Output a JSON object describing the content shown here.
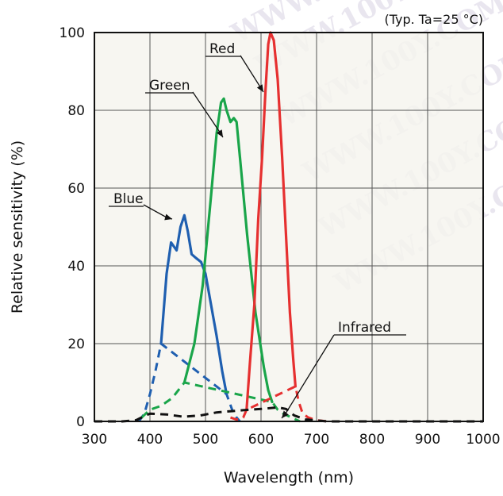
{
  "chart_data": {
    "type": "line",
    "note": "(Typ. Ta=25 °C)",
    "xlabel": "Wavelength (nm)",
    "ylabel": "Relative sensitivity (%)",
    "xlim": [
      300,
      1000
    ],
    "ylim": [
      0,
      100
    ],
    "xticks": [
      300,
      400,
      500,
      600,
      700,
      800,
      900,
      1000
    ],
    "yticks": [
      0,
      20,
      40,
      60,
      80,
      100
    ],
    "grid": true,
    "watermark": "WWW.100Y.COM.TW",
    "series": [
      {
        "name": "Blue",
        "color": "#1f5fb0",
        "solid": [
          [
            420,
            20
          ],
          [
            430,
            38
          ],
          [
            438,
            46
          ],
          [
            443,
            45
          ],
          [
            448,
            44
          ],
          [
            455,
            50
          ],
          [
            462,
            53
          ],
          [
            468,
            49
          ],
          [
            475,
            43
          ],
          [
            483,
            42
          ],
          [
            492,
            41
          ],
          [
            500,
            38
          ],
          [
            510,
            30
          ],
          [
            520,
            22
          ],
          [
            530,
            13
          ],
          [
            538,
            7
          ]
        ],
        "dashed": [
          [
            380,
            0
          ],
          [
            390,
            2
          ],
          [
            400,
            7
          ],
          [
            410,
            13
          ],
          [
            420,
            20
          ],
          [
            538,
            7
          ],
          [
            548,
            3
          ],
          [
            556,
            1
          ],
          [
            562,
            0
          ]
        ]
      },
      {
        "name": "Green",
        "color": "#1aa54a",
        "solid": [
          [
            462,
            10
          ],
          [
            480,
            20
          ],
          [
            495,
            35
          ],
          [
            510,
            58
          ],
          [
            520,
            74
          ],
          [
            528,
            82
          ],
          [
            533,
            83
          ],
          [
            538,
            80
          ],
          [
            545,
            77
          ],
          [
            551,
            78
          ],
          [
            556,
            77
          ],
          [
            562,
            68
          ],
          [
            575,
            48
          ],
          [
            590,
            28
          ],
          [
            605,
            14
          ],
          [
            613,
            8
          ],
          [
            620,
            5
          ]
        ],
        "dashed": [
          [
            385,
            1
          ],
          [
            400,
            3
          ],
          [
            420,
            4
          ],
          [
            440,
            6
          ],
          [
            462,
            10
          ],
          [
            620,
            5
          ],
          [
            630,
            3
          ],
          [
            640,
            2
          ],
          [
            655,
            1
          ],
          [
            670,
            0
          ]
        ]
      },
      {
        "name": "Red",
        "color": "#e63030",
        "solid": [
          [
            574,
            3
          ],
          [
            580,
            15
          ],
          [
            588,
            30
          ],
          [
            595,
            52
          ],
          [
            602,
            68
          ],
          [
            608,
            85
          ],
          [
            613,
            97
          ],
          [
            617,
            100
          ],
          [
            623,
            98
          ],
          [
            630,
            88
          ],
          [
            638,
            68
          ],
          [
            646,
            45
          ],
          [
            652,
            28
          ],
          [
            658,
            16
          ],
          [
            662,
            9
          ]
        ],
        "dashed": [
          [
            545,
            1
          ],
          [
            555,
            0.5
          ],
          [
            563,
            0.5
          ],
          [
            568,
            1
          ],
          [
            574,
            3
          ],
          [
            662,
            9
          ],
          [
            668,
            5
          ],
          [
            675,
            2
          ],
          [
            685,
            1
          ],
          [
            700,
            0.3
          ],
          [
            720,
            0
          ]
        ]
      },
      {
        "name": "Infrared",
        "color": "#111111",
        "solid": [],
        "dashed": [
          [
            300,
            0
          ],
          [
            350,
            0
          ],
          [
            375,
            0.3
          ],
          [
            392,
            1.5
          ],
          [
            400,
            2
          ],
          [
            430,
            1.8
          ],
          [
            460,
            1.2
          ],
          [
            490,
            1.5
          ],
          [
            520,
            2.3
          ],
          [
            560,
            2.8
          ],
          [
            600,
            3.2
          ],
          [
            630,
            3.6
          ],
          [
            645,
            3.2
          ],
          [
            660,
            1.5
          ],
          [
            680,
            0.5
          ],
          [
            720,
            0
          ],
          [
            800,
            0
          ],
          [
            1000,
            0
          ]
        ]
      }
    ],
    "labels": [
      {
        "text": "Blue",
        "series": "Blue"
      },
      {
        "text": "Green",
        "series": "Green"
      },
      {
        "text": "Red",
        "series": "Red"
      },
      {
        "text": "Infrared",
        "series": "Infrared"
      }
    ]
  }
}
